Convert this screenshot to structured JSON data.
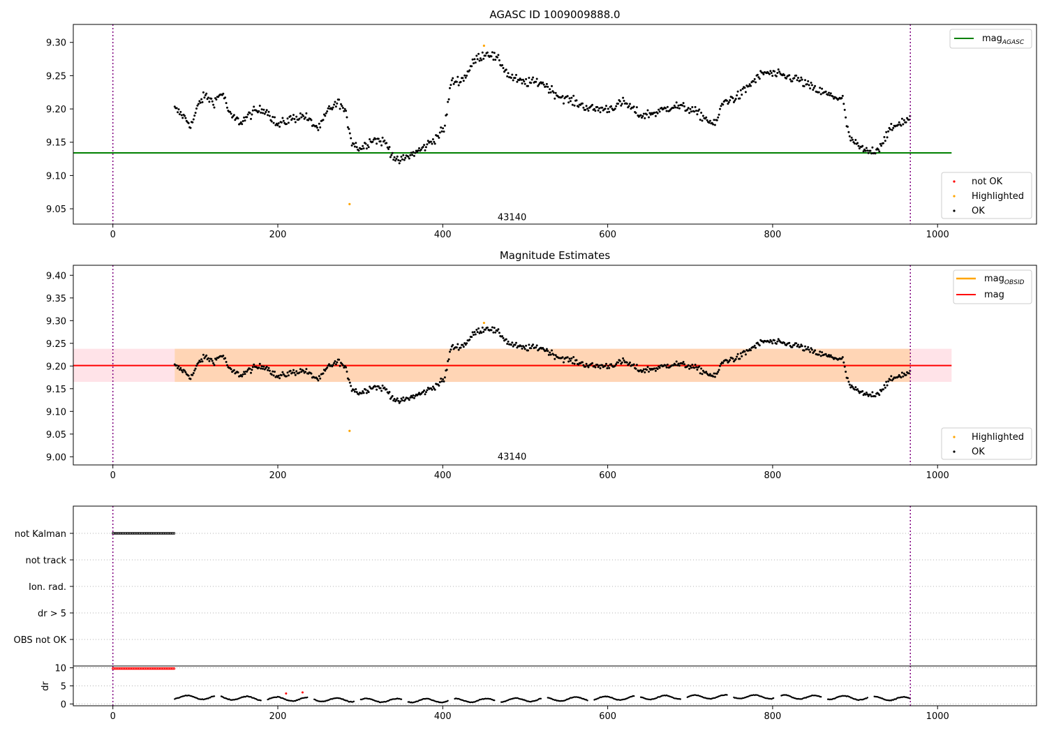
{
  "chart_data": [
    {
      "type": "scatter",
      "title": "AGASC ID 1009009888.0",
      "xlabel": "",
      "ylabel": "",
      "xlim": [
        -48,
        1120
      ],
      "ylim": [
        9.027,
        9.327
      ],
      "x_ticks": [
        0,
        200,
        400,
        600,
        800,
        1000
      ],
      "y_ticks": [
        9.05,
        9.1,
        9.15,
        9.2,
        9.25,
        9.3
      ],
      "grid": false,
      "vlines": [
        0,
        967
      ],
      "annotation": {
        "text": "43140",
        "x": 484,
        "y": 9.038
      },
      "hline": {
        "name": "mag_AGASC",
        "y": 9.134,
        "x_range": [
          -48,
          1017
        ],
        "color": "#008000"
      },
      "highlighted_points": [
        [
          287,
          9.057
        ],
        [
          450,
          9.295
        ]
      ],
      "anchors": [
        [
          75,
          9.2
        ],
        [
          85,
          9.19
        ],
        [
          95,
          9.175
        ],
        [
          105,
          9.21
        ],
        [
          112,
          9.22
        ],
        [
          122,
          9.21
        ],
        [
          133,
          9.225
        ],
        [
          142,
          9.19
        ],
        [
          155,
          9.18
        ],
        [
          170,
          9.195
        ],
        [
          185,
          9.2
        ],
        [
          200,
          9.175
        ],
        [
          215,
          9.185
        ],
        [
          232,
          9.19
        ],
        [
          240,
          9.18
        ],
        [
          250,
          9.17
        ],
        [
          262,
          9.2
        ],
        [
          275,
          9.21
        ],
        [
          283,
          9.19
        ],
        [
          290,
          9.15
        ],
        [
          300,
          9.14
        ],
        [
          315,
          9.155
        ],
        [
          330,
          9.15
        ],
        [
          345,
          9.12
        ],
        [
          360,
          9.13
        ],
        [
          375,
          9.14
        ],
        [
          390,
          9.155
        ],
        [
          402,
          9.17
        ],
        [
          410,
          9.24
        ],
        [
          425,
          9.245
        ],
        [
          440,
          9.275
        ],
        [
          455,
          9.285
        ],
        [
          470,
          9.27
        ],
        [
          480,
          9.25
        ],
        [
          495,
          9.24
        ],
        [
          520,
          9.24
        ],
        [
          540,
          9.22
        ],
        [
          560,
          9.21
        ],
        [
          580,
          9.2
        ],
        [
          600,
          9.2
        ],
        [
          620,
          9.21
        ],
        [
          640,
          9.19
        ],
        [
          660,
          9.195
        ],
        [
          680,
          9.205
        ],
        [
          700,
          9.2
        ],
        [
          720,
          9.185
        ],
        [
          730,
          9.175
        ],
        [
          740,
          9.21
        ],
        [
          760,
          9.22
        ],
        [
          775,
          9.24
        ],
        [
          790,
          9.255
        ],
        [
          810,
          9.25
        ],
        [
          830,
          9.245
        ],
        [
          850,
          9.23
        ],
        [
          870,
          9.22
        ],
        [
          885,
          9.215
        ],
        [
          892,
          9.16
        ],
        [
          902,
          9.145
        ],
        [
          915,
          9.135
        ],
        [
          928,
          9.14
        ],
        [
          940,
          9.165
        ],
        [
          955,
          9.18
        ],
        [
          967,
          9.185
        ]
      ],
      "legend_top": [
        {
          "label": "mag",
          "sub": "AGASC",
          "color": "#008000"
        }
      ],
      "legend_bottom": [
        {
          "label": "not OK",
          "color": "#ff0000"
        },
        {
          "label": "Highlighted",
          "color": "#ffa500"
        },
        {
          "label": "OK",
          "color": "#000000"
        }
      ]
    },
    {
      "type": "scatter",
      "title": "Magnitude Estimates",
      "xlabel": "",
      "ylabel": "",
      "xlim": [
        -48,
        1120
      ],
      "ylim": [
        8.982,
        9.422
      ],
      "x_ticks": [
        0,
        200,
        400,
        600,
        800,
        1000
      ],
      "y_ticks": [
        9.0,
        9.05,
        9.1,
        9.15,
        9.2,
        9.25,
        9.3,
        9.35,
        9.4
      ],
      "grid": false,
      "vlines": [
        0,
        967
      ],
      "annotation": {
        "text": "43140",
        "x": 484,
        "y": 9.0
      },
      "hline_obsid": {
        "name": "mag_OBSID",
        "y": 9.201,
        "color": "#ffa500",
        "band": [
          9.165,
          9.238
        ],
        "x_range": [
          75,
          967
        ]
      },
      "hline_mag": {
        "name": "mag",
        "y": 9.201,
        "color": "#ff0000",
        "band": [
          9.165,
          9.238
        ],
        "x_range": [
          -48,
          1017
        ]
      },
      "highlighted_points": [
        [
          287,
          9.057
        ],
        [
          450,
          9.295
        ]
      ],
      "legend_top": [
        {
          "label": "mag",
          "sub": "OBSID",
          "color": "#ffa500"
        },
        {
          "label": "mag",
          "sub": "",
          "color": "#ff0000"
        }
      ],
      "legend_bottom": [
        {
          "label": "Highlighted",
          "color": "#ffa500"
        },
        {
          "label": "OK",
          "color": "#000000"
        }
      ]
    },
    {
      "type": "scatter",
      "title": "",
      "xlim": [
        -48,
        1120
      ],
      "categories": [
        "not Kalman",
        "not track",
        "Ion. rad.",
        "dr > 5",
        "OBS not OK"
      ],
      "flag_ranges": [
        {
          "category": "not Kalman",
          "x_range": [
            0,
            75
          ]
        }
      ],
      "vlines": [
        0,
        967
      ],
      "grid": "horizontal dotted"
    },
    {
      "type": "scatter",
      "title": "",
      "xlabel": "",
      "ylabel": "dr",
      "xlim": [
        -48,
        1120
      ],
      "ylim": [
        -0.5,
        10.5
      ],
      "x_ticks": [
        0,
        200,
        400,
        600,
        800,
        1000
      ],
      "y_ticks": [
        0,
        5,
        10
      ],
      "vlines": [
        0,
        967
      ],
      "not_ok_high": {
        "x_range": [
          0,
          75
        ],
        "y": 9.8
      },
      "not_ok_points": [
        [
          210,
          2.9
        ],
        [
          230,
          3.2
        ]
      ],
      "dr_range": [
        0.3,
        2.6
      ]
    }
  ]
}
